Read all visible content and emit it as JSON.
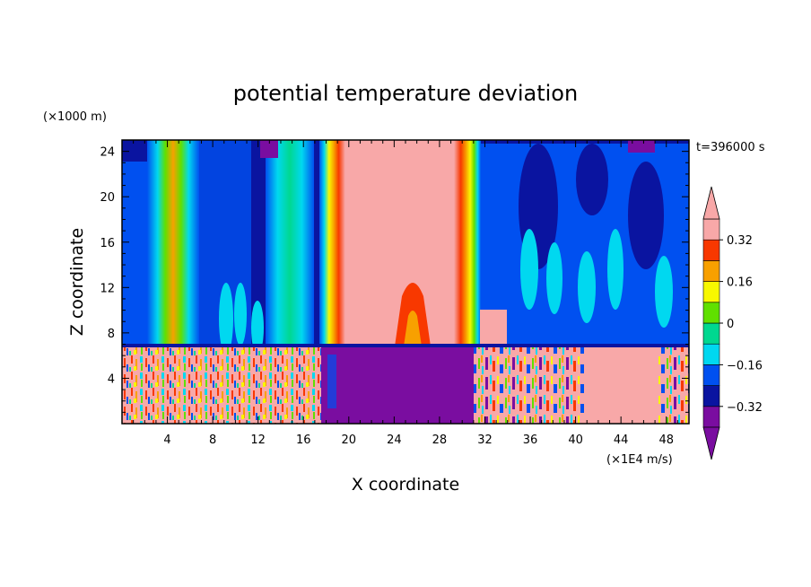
{
  "chart_data": {
    "type": "heatmap",
    "title": "potential temperature deviation",
    "time_label": "t=396000 s",
    "xlabel": "X coordinate",
    "ylabel": "Z coordinate",
    "x_unit": "(×1E4 m/s)",
    "y_unit": "(×1000 m)",
    "xlim": [
      0,
      50
    ],
    "ylim": [
      0,
      25
    ],
    "x_ticks": [
      "4",
      "8",
      "12",
      "16",
      "20",
      "24",
      "28",
      "32",
      "36",
      "40",
      "44",
      "48"
    ],
    "y_ticks": [
      "4",
      "8",
      "12",
      "16",
      "20",
      "24"
    ],
    "colorbar": {
      "labels": [
        "0.32",
        "0.16",
        "0",
        "−0.16",
        "−0.32"
      ],
      "label_values": [
        0.32,
        0.16,
        0,
        -0.16,
        -0.32
      ],
      "range": [
        -0.4,
        0.4
      ],
      "levels": [
        {
          "color": "#7a0da0"
        },
        {
          "color": "#0a14a0"
        },
        {
          "color": "#0050f0"
        },
        {
          "color": "#00d8f0"
        },
        {
          "color": "#00d890"
        },
        {
          "color": "#60e000"
        },
        {
          "color": "#f8f800"
        },
        {
          "color": "#f8a000"
        },
        {
          "color": "#f83800"
        },
        {
          "color": "#f8a8a8"
        }
      ],
      "extend": "both"
    },
    "description_regions": {
      "upper_layer_z_range": [
        7,
        25
      ],
      "lower_layer_z_range": [
        0,
        7
      ]
    }
  }
}
